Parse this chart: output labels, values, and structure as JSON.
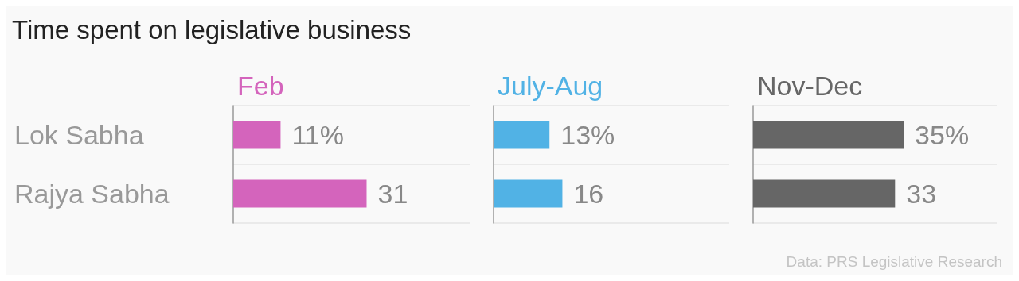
{
  "chart_data": [
    {
      "type": "bar",
      "orientation": "horizontal",
      "title": "Time spent on legislative business",
      "categories": [
        "Lok Sabha",
        "Rajya Sabha"
      ],
      "series": [
        {
          "name": "Feb",
          "color": "#d464bc",
          "values": [
            11,
            31
          ],
          "value_labels": [
            "11%",
            "31"
          ]
        }
      ],
      "grid": "y",
      "tick_labels": "y"
    },
    {
      "type": "bar",
      "orientation": "horizontal",
      "categories": [
        null,
        null
      ],
      "series": [
        {
          "name": "July-Aug",
          "color": "#51b2e5",
          "values": [
            13,
            16
          ],
          "value_labels": [
            "13%",
            "16"
          ]
        }
      ],
      "grid": "y",
      "tick_labels": false
    },
    {
      "type": "bar",
      "orientation": "horizontal",
      "categories": [
        null,
        null
      ],
      "series": [
        {
          "name": "Nov-Dec",
          "color": "#666666",
          "values": [
            35,
            33
          ],
          "value_labels": [
            "35%",
            "33"
          ]
        }
      ],
      "grid": "y",
      "tick_labels": false,
      "annotations": [
        "Data: PRS Legislative Research"
      ]
    }
  ]
}
